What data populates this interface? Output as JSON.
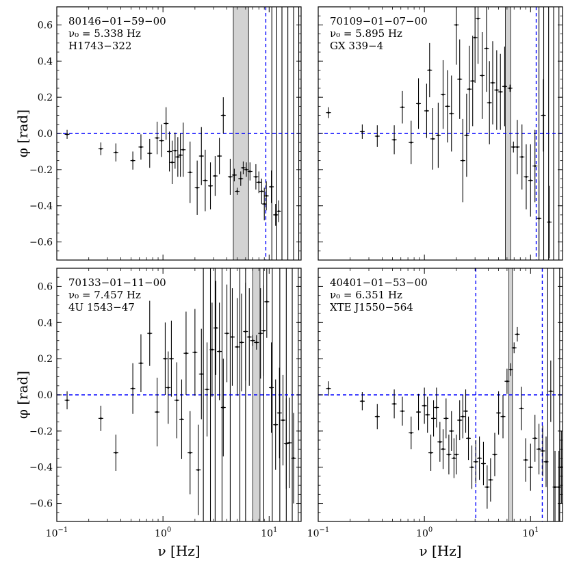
{
  "chart_data": [
    {
      "type": "scatter",
      "annotations": [
        "80146−01−59−00",
        "ν₀ = 5.338 Hz",
        "H1743−322"
      ],
      "xlabel": "",
      "ylabel": "φ [rad]",
      "xscale": "log",
      "xlim": [
        0.1,
        20
      ],
      "ylim": [
        -0.7,
        0.7
      ],
      "yticks": [
        "−0.6",
        "−0.4",
        "−0.2",
        "0.0",
        "0.2",
        "0.4",
        "0.6"
      ],
      "xticks": [],
      "ref_line_y": 0.0,
      "ref_lines_x": [
        9.3
      ],
      "shaded_band_x": [
        4.6,
        6.4
      ],
      "vertical_extents_x": [
        10.6,
        11.8,
        13.2,
        15.0,
        17.0,
        19.0
      ],
      "series": [
        {
          "x": [
            0.125,
            0.26,
            0.36,
            0.52,
            0.62,
            0.75,
            0.88,
            0.97,
            1.07,
            1.15,
            1.22,
            1.3,
            1.38,
            1.46,
            1.55,
            1.8,
            2.1,
            2.3,
            2.5,
            2.8,
            3.1,
            3.4,
            3.7,
            4.3,
            4.7,
            5.0,
            5.4,
            5.7,
            6.1,
            6.6,
            7.5,
            8.0,
            8.5,
            9.0,
            9.4,
            10.5,
            11.5,
            12.3
          ],
          "y": [
            -0.005,
            -0.085,
            -0.105,
            -0.15,
            -0.075,
            -0.11,
            -0.025,
            -0.04,
            0.055,
            -0.1,
            -0.16,
            -0.095,
            -0.13,
            -0.12,
            -0.09,
            -0.215,
            -0.3,
            -0.125,
            -0.26,
            -0.29,
            -0.235,
            -0.125,
            0.1,
            -0.24,
            -0.23,
            -0.32,
            -0.25,
            -0.19,
            -0.2,
            -0.21,
            -0.24,
            -0.27,
            -0.32,
            -0.39,
            -0.345,
            -0.295,
            -0.45,
            -0.43
          ],
          "err": [
            0.025,
            0.035,
            0.05,
            0.05,
            0.07,
            0.08,
            0.09,
            0.09,
            0.09,
            0.11,
            0.12,
            0.1,
            0.11,
            0.12,
            0.15,
            0.17,
            0.15,
            0.16,
            0.17,
            0.13,
            0.11,
            0.1,
            0.1,
            0.1,
            0.035,
            0.02,
            0.04,
            0.035,
            0.04,
            0.05,
            0.07,
            0.06,
            0.07,
            0.09,
            0.08,
            0.09,
            0.06,
            0.06
          ]
        }
      ]
    },
    {
      "type": "scatter",
      "annotations": [
        "70109−01−07−00",
        "ν₀ = 5.895 Hz",
        "GX 339−4"
      ],
      "xlabel": "",
      "ylabel": "",
      "xscale": "log",
      "xlim": [
        0.1,
        20
      ],
      "ylim": [
        -0.7,
        0.7
      ],
      "yticks": [],
      "xticks": [],
      "ref_line_y": 0.0,
      "ref_lines_x": [
        11.3
      ],
      "shaded_band_x": [
        5.8,
        6.5
      ],
      "vertical_extents_x": [
        12.0,
        13.3,
        14.8,
        16.5,
        18.5
      ],
      "series": [
        {
          "x": [
            0.125,
            0.26,
            0.36,
            0.52,
            0.62,
            0.75,
            0.88,
            1.05,
            1.12,
            1.2,
            1.35,
            1.5,
            1.65,
            1.8,
            2.0,
            2.15,
            2.3,
            2.5,
            2.65,
            2.85,
            3.0,
            3.2,
            3.5,
            3.85,
            4.1,
            4.4,
            4.8,
            5.2,
            5.7,
            6.4,
            6.9,
            7.5,
            8.3,
            9.1,
            10.0,
            11.0,
            12.0,
            13.2,
            15.0
          ],
          "y": [
            0.115,
            0.01,
            -0.015,
            -0.035,
            0.145,
            -0.05,
            0.165,
            0.125,
            0.35,
            -0.03,
            -0.01,
            0.215,
            0.15,
            0.11,
            0.6,
            0.3,
            -0.15,
            -0.01,
            0.245,
            0.29,
            0.53,
            0.635,
            0.32,
            0.47,
            0.17,
            0.28,
            0.24,
            0.23,
            0.26,
            0.25,
            -0.075,
            -0.075,
            -0.13,
            -0.24,
            -0.26,
            -0.18,
            -0.47,
            0.1,
            -0.49
          ],
          "err": [
            0.03,
            0.04,
            0.06,
            0.08,
            0.09,
            0.12,
            0.14,
            0.15,
            0.15,
            0.17,
            0.18,
            0.19,
            0.2,
            0.21,
            0.22,
            0.22,
            0.23,
            0.23,
            0.24,
            0.25,
            0.25,
            0.25,
            0.24,
            0.24,
            0.23,
            0.23,
            0.22,
            0.21,
            0.22,
            0.02,
            0.03,
            0.15,
            0.18,
            0.18,
            0.2,
            0.2,
            0.21,
            0.2,
            0.2
          ]
        }
      ]
    },
    {
      "type": "scatter",
      "annotations": [
        "70133−01−11−00",
        "ν₀ = 7.457 Hz",
        "4U 1543−47"
      ],
      "xlabel": "ν [Hz]",
      "ylabel": "φ [rad]",
      "xscale": "log",
      "xlim": [
        0.1,
        20
      ],
      "ylim": [
        -0.7,
        0.7
      ],
      "yticks": [
        "−0.6",
        "−0.4",
        "−0.2",
        "0.0",
        "0.2",
        "0.4",
        "0.6"
      ],
      "xticks": [
        "10^-1",
        "10^0",
        "10^1"
      ],
      "ref_line_y": 0.0,
      "ref_lines_x": [],
      "shaded_band_x": [
        7.0,
        8.2
      ],
      "vertical_extents_x": [
        2.4,
        2.8,
        3.1,
        3.6,
        4.3,
        5.3,
        6.0,
        8.9,
        10.7,
        12.6,
        14.5,
        16.5,
        18.8
      ],
      "series": [
        {
          "x": [
            0.125,
            0.26,
            0.36,
            0.52,
            0.62,
            0.75,
            0.88,
            1.05,
            1.12,
            1.2,
            1.35,
            1.5,
            1.65,
            1.8,
            2.0,
            2.15,
            2.3,
            2.6,
            2.9,
            3.15,
            3.4,
            3.7,
            4.0,
            4.5,
            5.0,
            5.5,
            6.0,
            6.5,
            7.0,
            7.6,
            8.3,
            8.9,
            9.5,
            10.5,
            11.5,
            12.5,
            13.5,
            14.5,
            15.5,
            17.0
          ],
          "y": [
            -0.03,
            -0.13,
            -0.32,
            0.035,
            0.175,
            0.34,
            -0.095,
            0.2,
            0.04,
            0.2,
            -0.03,
            -0.135,
            0.23,
            -0.32,
            0.235,
            -0.415,
            0.115,
            0.03,
            0.25,
            0.37,
            0.24,
            -0.07,
            0.34,
            0.32,
            0.265,
            0.29,
            0.35,
            0.32,
            0.3,
            0.29,
            0.34,
            0.355,
            0.515,
            0.04,
            -0.165,
            -0.1,
            -0.14,
            -0.27,
            -0.265,
            -0.35
          ],
          "err": [
            0.05,
            0.07,
            0.1,
            0.14,
            0.16,
            0.18,
            0.19,
            0.2,
            0.2,
            0.21,
            0.21,
            0.22,
            0.23,
            0.23,
            0.24,
            0.25,
            0.25,
            0.26,
            0.26,
            0.26,
            0.27,
            0.27,
            0.27,
            0.27,
            0.27,
            0.27,
            0.27,
            0.27,
            0.03,
            0.04,
            0.25,
            0.25,
            0.2,
            0.25,
            0.25,
            0.25,
            0.25,
            0.25,
            0.25,
            0.25
          ]
        }
      ]
    },
    {
      "type": "scatter",
      "annotations": [
        "40401−01−53−00",
        "ν₀ = 6.351 Hz",
        "XTE J1550−564"
      ],
      "xlabel": "ν [Hz]",
      "ylabel": "",
      "xscale": "log",
      "xlim": [
        0.1,
        20
      ],
      "ylim": [
        -0.7,
        0.7
      ],
      "yticks": [],
      "xticks": [
        "10^-1",
        "10^0",
        "10^1"
      ],
      "ref_line_y": 0.0,
      "ref_lines_x": [
        3.05,
        12.9
      ],
      "shaded_band_x": [
        6.25,
        6.75
      ],
      "vertical_extents_x": [
        14.5,
        16.5,
        18.8
      ],
      "series": [
        {
          "x": [
            0.125,
            0.26,
            0.36,
            0.52,
            0.62,
            0.75,
            0.88,
            1.0,
            1.07,
            1.15,
            1.22,
            1.3,
            1.4,
            1.5,
            1.6,
            1.7,
            1.8,
            1.9,
            2.0,
            2.15,
            2.3,
            2.45,
            2.6,
            2.8,
            3.05,
            3.3,
            3.6,
            3.9,
            4.2,
            4.6,
            5.0,
            5.5,
            6.0,
            6.5,
            7.0,
            7.5,
            8.2,
            9.0,
            10.0,
            11.0,
            12.0,
            13.0,
            14.0,
            15.5,
            17.0,
            18.5,
            19.5
          ],
          "y": [
            0.035,
            -0.035,
            -0.12,
            -0.05,
            -0.09,
            -0.21,
            -0.095,
            -0.06,
            -0.11,
            -0.32,
            -0.13,
            -0.07,
            -0.26,
            -0.3,
            -0.13,
            -0.33,
            -0.2,
            -0.35,
            -0.33,
            -0.14,
            -0.12,
            -0.09,
            -0.24,
            -0.4,
            -0.37,
            -0.35,
            -0.38,
            -0.51,
            -0.47,
            -0.33,
            -0.1,
            -0.12,
            0.075,
            0.14,
            0.26,
            0.335,
            -0.075,
            -0.36,
            -0.4,
            -0.24,
            -0.3,
            -0.31,
            -0.37,
            0.02,
            -0.51,
            -0.51,
            -0.4
          ],
          "err": [
            0.04,
            0.05,
            0.07,
            0.08,
            0.08,
            0.09,
            0.1,
            0.1,
            0.1,
            0.1,
            0.1,
            0.11,
            0.11,
            0.11,
            0.11,
            0.11,
            0.11,
            0.11,
            0.11,
            0.11,
            0.12,
            0.12,
            0.12,
            0.12,
            0.12,
            0.12,
            0.12,
            0.12,
            0.12,
            0.12,
            0.12,
            0.12,
            0.07,
            0.035,
            0.03,
            0.04,
            0.12,
            0.12,
            0.13,
            0.13,
            0.14,
            0.14,
            0.14,
            0.17,
            0.2,
            0.2,
            0.2
          ]
        }
      ]
    }
  ]
}
